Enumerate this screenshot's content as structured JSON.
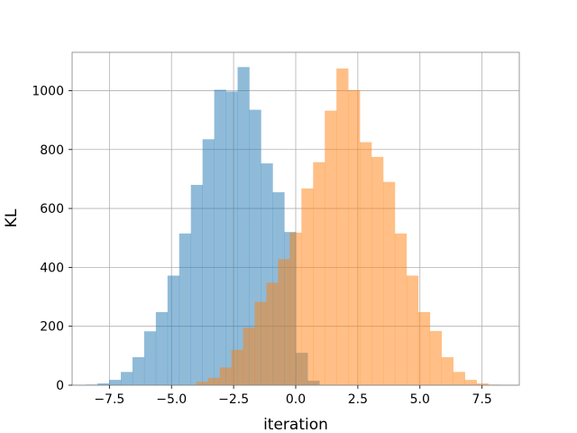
{
  "chart_data": {
    "type": "bar",
    "title": "",
    "xlabel": "iteration",
    "ylabel": "KL",
    "xlim": [
      -9.0,
      9.0
    ],
    "ylim": [
      0,
      1130
    ],
    "grid": true,
    "legend": "none",
    "x_ticks": [
      -7.5,
      -5.0,
      -2.5,
      0.0,
      2.5,
      5.0,
      7.5
    ],
    "x_tick_labels": [
      "−7.5",
      "−5.0",
      "−2.5",
      "0.0",
      "2.5",
      "5.0",
      "7.5"
    ],
    "y_ticks": [
      0,
      200,
      400,
      600,
      800,
      1000
    ],
    "y_tick_labels": [
      "0",
      "200",
      "400",
      "600",
      "800",
      "1000"
    ],
    "series": [
      {
        "color": "#1f77b4",
        "opacity": 0.5,
        "bin_width": 0.47,
        "bin_starts": [
          -8.45,
          -7.98,
          -7.51,
          -7.04,
          -6.57,
          -6.1,
          -5.63,
          -5.16,
          -4.69,
          -4.22,
          -3.75,
          -3.28,
          -2.81,
          -2.34,
          -1.87,
          -1.4,
          -0.93,
          -0.46,
          0.01,
          0.48
        ],
        "values": [
          2,
          6,
          18,
          45,
          95,
          183,
          248,
          372,
          515,
          680,
          835,
          1003,
          997,
          1080,
          935,
          753,
          655,
          520,
          110,
          15
        ]
      },
      {
        "color": "#ff7f0e",
        "opacity": 0.5,
        "bin_width": 0.47,
        "bin_starts": [
          -4.0,
          -3.53,
          -3.06,
          -2.59,
          -2.12,
          -1.65,
          -1.18,
          -0.71,
          -0.24,
          0.23,
          0.7,
          1.17,
          1.64,
          2.11,
          2.58,
          3.05,
          3.52,
          3.99,
          4.46,
          4.93,
          5.4,
          5.87,
          6.34,
          6.81,
          7.28,
          7.75
        ],
        "values": [
          12,
          25,
          60,
          120,
          195,
          283,
          348,
          428,
          518,
          668,
          757,
          932,
          1075,
          1002,
          825,
          775,
          690,
          515,
          372,
          248,
          184,
          95,
          45,
          18,
          6,
          2
        ]
      }
    ]
  }
}
